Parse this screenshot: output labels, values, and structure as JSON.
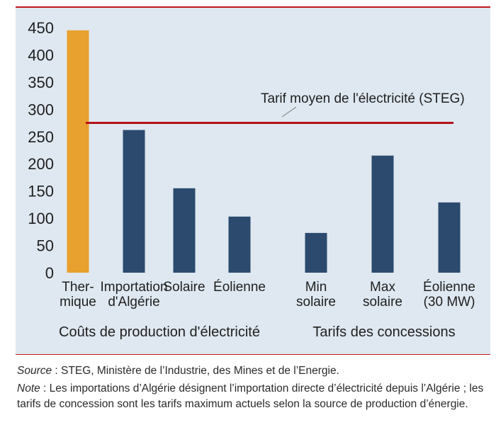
{
  "chart_data": {
    "type": "bar",
    "categories": [
      [
        "Ther-",
        "mique"
      ],
      [
        "Importation",
        "d'Algérie"
      ],
      [
        "Solaire"
      ],
      [
        "Éolienne"
      ],
      [
        "Min",
        "solaire"
      ],
      [
        "Max",
        "solaire"
      ],
      [
        "Éolienne",
        "(30 MW)"
      ]
    ],
    "values": [
      445,
      262,
      155,
      103,
      73,
      215,
      129
    ],
    "bar_colors": [
      "#e8a02e",
      "#2b4a6e",
      "#2b4a6e",
      "#2b4a6e",
      "#2b4a6e",
      "#2b4a6e",
      "#2b4a6e"
    ],
    "ylim": [
      0,
      450
    ],
    "yticks": [
      "0",
      "50",
      "100",
      "150",
      "200",
      "250",
      "300",
      "350",
      "400",
      "450"
    ],
    "grid": false,
    "reference_line": {
      "label": "Tarif moyen de l'électricité (STEG)",
      "value": 275,
      "color": "#b5121b"
    },
    "group_labels": [
      "Coûts de production d'électricité",
      "Tarifs des concessions"
    ]
  },
  "footnote": {
    "source_label": "Source",
    "source_text": " : STEG, Ministère de l’Industrie, des Mines et de l’Energie.",
    "note_label": "Note",
    "note_text": " : Les importations d’Algérie désignent l’importation directe d’électricité depuis l’Algérie ; les tarifs de concession sont les tarifs maximum actuels selon la source de production d’énergie."
  }
}
